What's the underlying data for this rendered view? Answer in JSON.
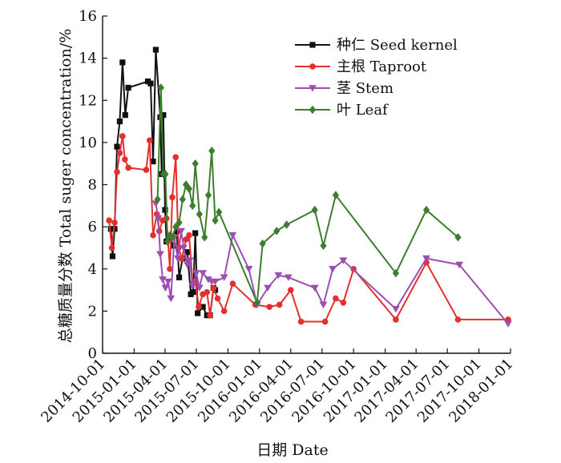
{
  "chart_data": {
    "type": "line",
    "title": "",
    "xlabel": "日期 Date",
    "ylabel": "总糖质量分数 Total suger concentration/%",
    "x_ticks": [
      "2014-10-01",
      "2015-01-01",
      "2015-04-01",
      "2015-07-01",
      "2015-10-01",
      "2016-01-01",
      "2016-04-01",
      "2016-07-01",
      "2016-10-01",
      "2017-01-01",
      "2017-04-01",
      "2017-07-01",
      "2017-10-01",
      "2018-01-01"
    ],
    "xlim": [
      "2014-10-01",
      "2018-01-01"
    ],
    "ylim": [
      0,
      16
    ],
    "y_ticks": [
      0,
      2,
      4,
      6,
      8,
      10,
      12,
      14,
      16
    ],
    "grid": false,
    "legend_position": "top-right",
    "series": [
      {
        "name": "种仁 Seed kernel",
        "color": "#111111",
        "marker": "square",
        "points": [
          [
            "2014-10-25",
            5.9
          ],
          [
            "2014-10-30",
            4.6
          ],
          [
            "2014-11-05",
            5.9
          ],
          [
            "2014-11-12",
            9.8
          ],
          [
            "2014-11-20",
            11.0
          ],
          [
            "2014-11-28",
            13.8
          ],
          [
            "2014-12-06",
            11.3
          ],
          [
            "2014-12-15",
            12.6
          ],
          [
            "2015-02-10",
            12.9
          ],
          [
            "2015-02-18",
            12.8
          ],
          [
            "2015-02-25",
            9.1
          ],
          [
            "2015-03-05",
            14.4
          ],
          [
            "2015-03-18",
            11.2
          ],
          [
            "2015-03-22",
            8.5
          ],
          [
            "2015-03-27",
            11.3
          ],
          [
            "2015-04-01",
            6.8
          ],
          [
            "2015-04-05",
            5.3
          ],
          [
            "2015-04-15",
            5.5
          ],
          [
            "2015-04-25",
            5.1
          ],
          [
            "2015-05-05",
            5.8
          ],
          [
            "2015-05-12",
            3.6
          ],
          [
            "2015-05-22",
            4.5
          ],
          [
            "2015-06-05",
            4.8
          ],
          [
            "2015-06-15",
            2.8
          ],
          [
            "2015-06-22",
            2.9
          ],
          [
            "2015-06-28",
            5.7
          ],
          [
            "2015-07-05",
            1.9
          ],
          [
            "2015-07-20",
            2.2
          ],
          [
            "2015-08-01",
            1.8
          ],
          [
            "2015-08-10",
            1.8
          ],
          [
            "2015-08-20",
            3.1
          ],
          [
            "2015-08-25",
            3.0
          ]
        ]
      },
      {
        "name": "主根 Taproot",
        "color": "#e3302f",
        "marker": "circle",
        "points": [
          [
            "2014-10-20",
            6.3
          ],
          [
            "2014-10-28",
            5.0
          ],
          [
            "2014-11-05",
            6.2
          ],
          [
            "2014-11-12",
            8.6
          ],
          [
            "2014-11-20",
            9.5
          ],
          [
            "2014-11-28",
            10.3
          ],
          [
            "2014-12-05",
            9.2
          ],
          [
            "2014-12-15",
            8.8
          ],
          [
            "2015-02-05",
            8.7
          ],
          [
            "2015-02-15",
            10.1
          ],
          [
            "2015-02-25",
            5.6
          ],
          [
            "2015-03-08",
            6.6
          ],
          [
            "2015-03-15",
            5.8
          ],
          [
            "2015-03-25",
            6.3
          ],
          [
            "2015-04-05",
            6.4
          ],
          [
            "2015-04-15",
            4.0
          ],
          [
            "2015-04-22",
            7.4
          ],
          [
            "2015-05-02",
            9.3
          ],
          [
            "2015-05-10",
            5.0
          ],
          [
            "2015-05-20",
            4.5
          ],
          [
            "2015-06-01",
            5.4
          ],
          [
            "2015-06-10",
            5.6
          ],
          [
            "2015-06-20",
            3.3
          ],
          [
            "2015-06-28",
            3.4
          ],
          [
            "2015-07-08",
            2.2
          ],
          [
            "2015-07-20",
            2.8
          ],
          [
            "2015-08-01",
            2.9
          ],
          [
            "2015-08-10",
            1.8
          ],
          [
            "2015-08-20",
            3.1
          ],
          [
            "2015-09-01",
            2.6
          ],
          [
            "2015-09-20",
            2.0
          ],
          [
            "2015-10-15",
            3.3
          ],
          [
            "2015-12-20",
            2.3
          ],
          [
            "2016-01-30",
            2.2
          ],
          [
            "2016-02-28",
            2.3
          ],
          [
            "2016-04-01",
            3.0
          ],
          [
            "2016-05-01",
            1.5
          ],
          [
            "2016-07-10",
            1.5
          ],
          [
            "2016-08-10",
            2.6
          ],
          [
            "2016-09-01",
            2.4
          ],
          [
            "2016-10-01",
            4.0
          ],
          [
            "2017-02-01",
            1.6
          ],
          [
            "2017-05-01",
            4.3
          ],
          [
            "2017-08-01",
            1.6
          ],
          [
            "2017-12-25",
            1.6
          ]
        ]
      },
      {
        "name": "茎 Stem",
        "color": "#9b4fb0",
        "marker": "triangle-down",
        "points": [
          [
            "2015-03-05",
            7.1
          ],
          [
            "2015-03-12",
            6.4
          ],
          [
            "2015-03-18",
            4.7
          ],
          [
            "2015-03-25",
            3.5
          ],
          [
            "2015-04-02",
            3.1
          ],
          [
            "2015-04-10",
            3.4
          ],
          [
            "2015-04-18",
            2.6
          ],
          [
            "2015-04-28",
            5.5
          ],
          [
            "2015-05-08",
            4.5
          ],
          [
            "2015-05-18",
            5.8
          ],
          [
            "2015-05-25",
            5.0
          ],
          [
            "2015-06-05",
            4.2
          ],
          [
            "2015-06-12",
            4.4
          ],
          [
            "2015-06-20",
            3.2
          ],
          [
            "2015-07-01",
            3.8
          ],
          [
            "2015-07-10",
            3.1
          ],
          [
            "2015-07-20",
            3.8
          ],
          [
            "2015-08-05",
            3.5
          ],
          [
            "2015-08-15",
            3.4
          ],
          [
            "2015-08-25",
            3.4
          ],
          [
            "2015-09-20",
            3.6
          ],
          [
            "2015-10-15",
            5.6
          ],
          [
            "2015-12-01",
            4.0
          ],
          [
            "2015-12-25",
            2.3
          ],
          [
            "2016-01-25",
            3.1
          ],
          [
            "2016-02-25",
            3.7
          ],
          [
            "2016-03-25",
            3.6
          ],
          [
            "2016-06-10",
            3.1
          ],
          [
            "2016-07-05",
            2.3
          ],
          [
            "2016-08-01",
            4.0
          ],
          [
            "2016-09-01",
            4.4
          ],
          [
            "2017-02-01",
            2.1
          ],
          [
            "2017-05-01",
            4.5
          ],
          [
            "2017-08-05",
            4.2
          ],
          [
            "2017-12-25",
            1.4
          ]
        ]
      },
      {
        "name": "叶 Leaf",
        "color": "#3c7d2e",
        "marker": "diamond",
        "points": [
          [
            "2015-03-10",
            7.3
          ],
          [
            "2015-03-20",
            12.6
          ],
          [
            "2015-03-27",
            8.5
          ],
          [
            "2015-04-02",
            8.5
          ],
          [
            "2015-04-08",
            5.3
          ],
          [
            "2015-04-15",
            5.6
          ],
          [
            "2015-04-22",
            5.5
          ],
          [
            "2015-05-02",
            6.0
          ],
          [
            "2015-05-12",
            6.2
          ],
          [
            "2015-05-22",
            7.3
          ],
          [
            "2015-06-01",
            8.0
          ],
          [
            "2015-06-10",
            7.8
          ],
          [
            "2015-06-20",
            7.0
          ],
          [
            "2015-06-28",
            9.0
          ],
          [
            "2015-07-10",
            6.6
          ],
          [
            "2015-07-25",
            5.5
          ],
          [
            "2015-08-05",
            7.5
          ],
          [
            "2015-08-15",
            9.6
          ],
          [
            "2015-08-25",
            6.3
          ],
          [
            "2015-09-05",
            6.7
          ],
          [
            "2015-12-25",
            2.4
          ],
          [
            "2016-01-10",
            5.2
          ],
          [
            "2016-02-20",
            5.8
          ],
          [
            "2016-03-20",
            6.1
          ],
          [
            "2016-06-10",
            6.8
          ],
          [
            "2016-07-05",
            5.1
          ],
          [
            "2016-08-10",
            7.5
          ],
          [
            "2017-02-01",
            3.8
          ],
          [
            "2017-05-01",
            6.8
          ],
          [
            "2017-08-01",
            5.5
          ]
        ]
      }
    ]
  }
}
